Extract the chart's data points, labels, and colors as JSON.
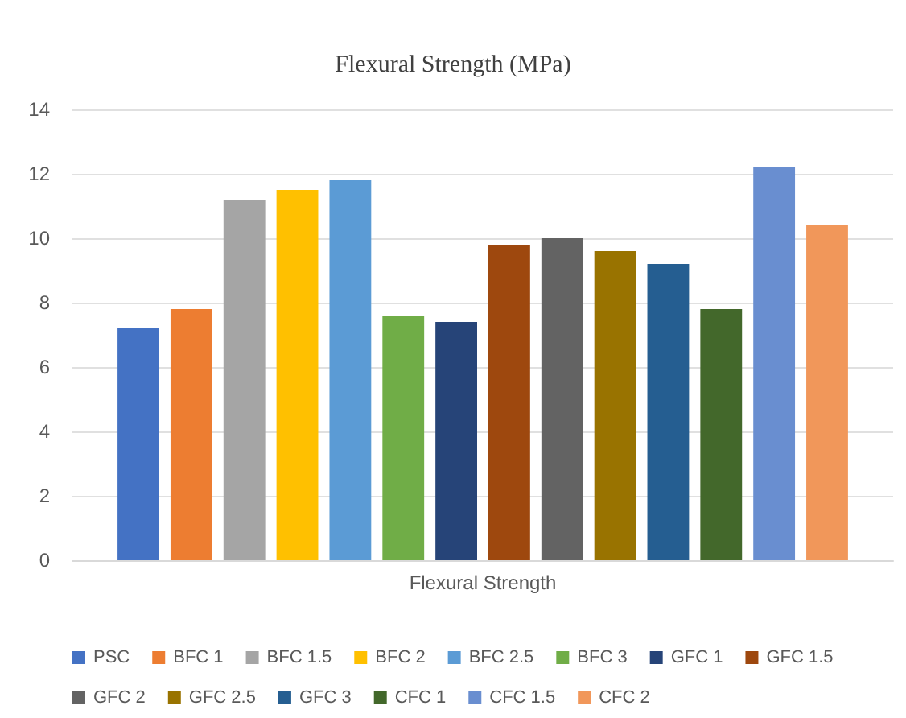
{
  "chart_data": {
    "type": "bar",
    "title": "Flexural Strength (MPa)",
    "categories": [
      "Flexural Strength"
    ],
    "series": [
      {
        "name": "PSC",
        "color": "#4472c4",
        "values": [
          7.2
        ]
      },
      {
        "name": "BFC 1",
        "color": "#ed7d31",
        "values": [
          7.8
        ]
      },
      {
        "name": "BFC 1.5",
        "color": "#a5a5a5",
        "values": [
          11.2
        ]
      },
      {
        "name": "BFC 2",
        "color": "#ffc000",
        "values": [
          11.5
        ]
      },
      {
        "name": "BFC 2.5",
        "color": "#5b9bd5",
        "values": [
          11.8
        ]
      },
      {
        "name": "BFC 3",
        "color": "#70ad47",
        "values": [
          7.6
        ]
      },
      {
        "name": "GFC 1",
        "color": "#264478",
        "values": [
          7.4
        ]
      },
      {
        "name": "GFC 1.5",
        "color": "#9e480e",
        "values": [
          9.8
        ]
      },
      {
        "name": "GFC 2",
        "color": "#636363",
        "values": [
          10.0
        ]
      },
      {
        "name": "GFC 2.5",
        "color": "#997300",
        "values": [
          9.6
        ]
      },
      {
        "name": "GFC 3",
        "color": "#255e91",
        "values": [
          9.2
        ]
      },
      {
        "name": "CFC 1",
        "color": "#43682b",
        "values": [
          7.8
        ]
      },
      {
        "name": "CFC 1.5",
        "color": "#698ed0",
        "values": [
          12.2
        ]
      },
      {
        "name": "CFC 2",
        "color": "#f1975a",
        "values": [
          10.4
        ]
      }
    ],
    "ylim": [
      0,
      14
    ],
    "yticks": [
      0,
      2,
      4,
      6,
      8,
      10,
      12,
      14
    ],
    "grid": "y",
    "legend": "bottom"
  }
}
